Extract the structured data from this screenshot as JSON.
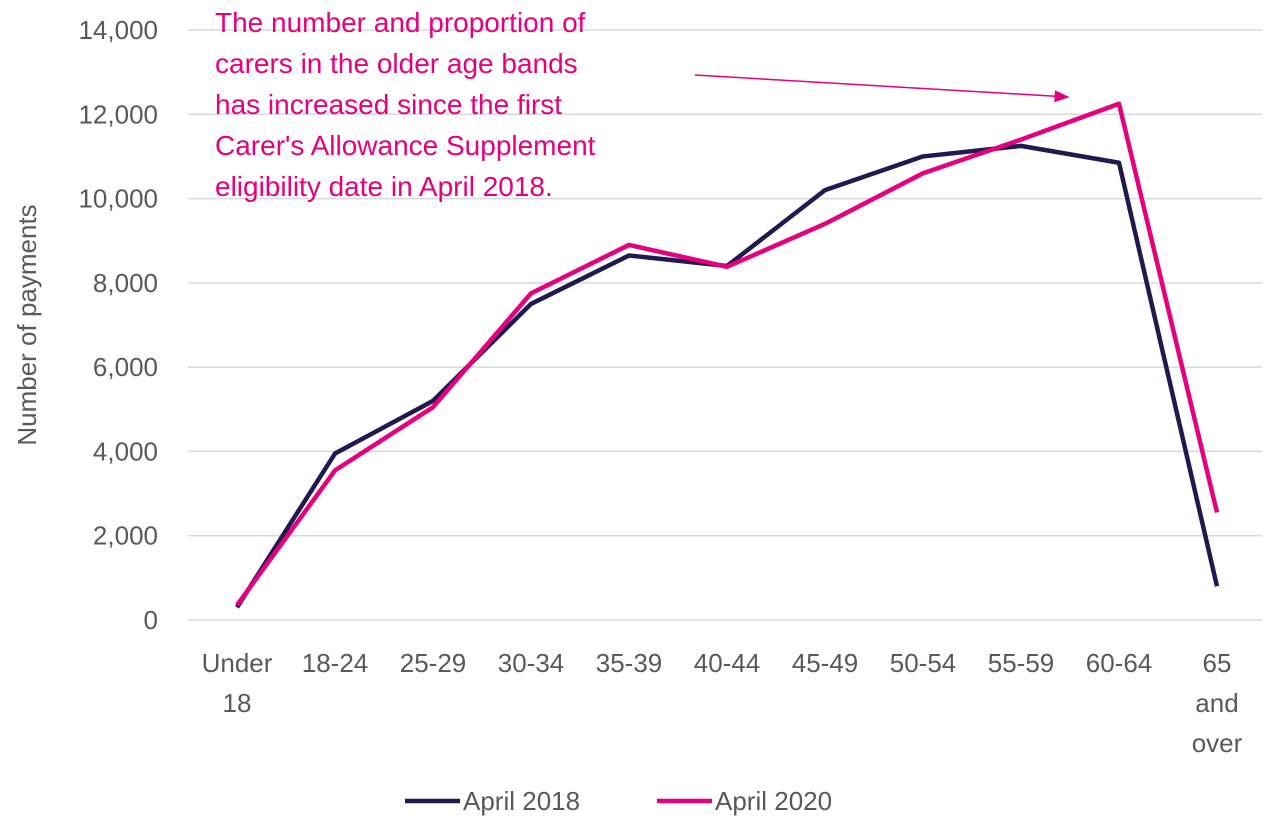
{
  "chart_data": {
    "type": "line",
    "y_axis_label": "Number of payments",
    "annotation": [
      "The number and proportion of",
      "carers in the older age bands",
      "has increased since the first",
      "Carer's Allowance Supplement",
      "eligibility date in April 2018."
    ],
    "categories": [
      "Under 18",
      "18-24",
      "25-29",
      "30-34",
      "35-39",
      "40-44",
      "45-49",
      "50-54",
      "55-59",
      "60-64",
      "65 and over"
    ],
    "series": [
      {
        "name": "April 2018",
        "color": "#1f1a4f",
        "values": [
          300,
          3950,
          5200,
          7500,
          8650,
          8400,
          10200,
          11000,
          11250,
          10850,
          800
        ]
      },
      {
        "name": "April 2020",
        "color": "#e6007e",
        "values": [
          350,
          3550,
          5050,
          7750,
          8900,
          8380,
          9400,
          10600,
          11400,
          12250,
          2550
        ]
      }
    ],
    "ylim": [
      0,
      14000
    ],
    "yticks": [
      0,
      {
        "value": 2000,
        "label": "2,000"
      },
      {
        "value": 4000,
        "label": "4,000"
      },
      {
        "value": 6000,
        "label": "6,000"
      },
      {
        "value": 8000,
        "label": "8,000"
      },
      {
        "value": 10000,
        "label": "10,000"
      },
      {
        "value": 12000,
        "label": "12,000"
      },
      {
        "value": 14000,
        "label": "14,000"
      }
    ],
    "grid": true,
    "legend": "bottom"
  }
}
